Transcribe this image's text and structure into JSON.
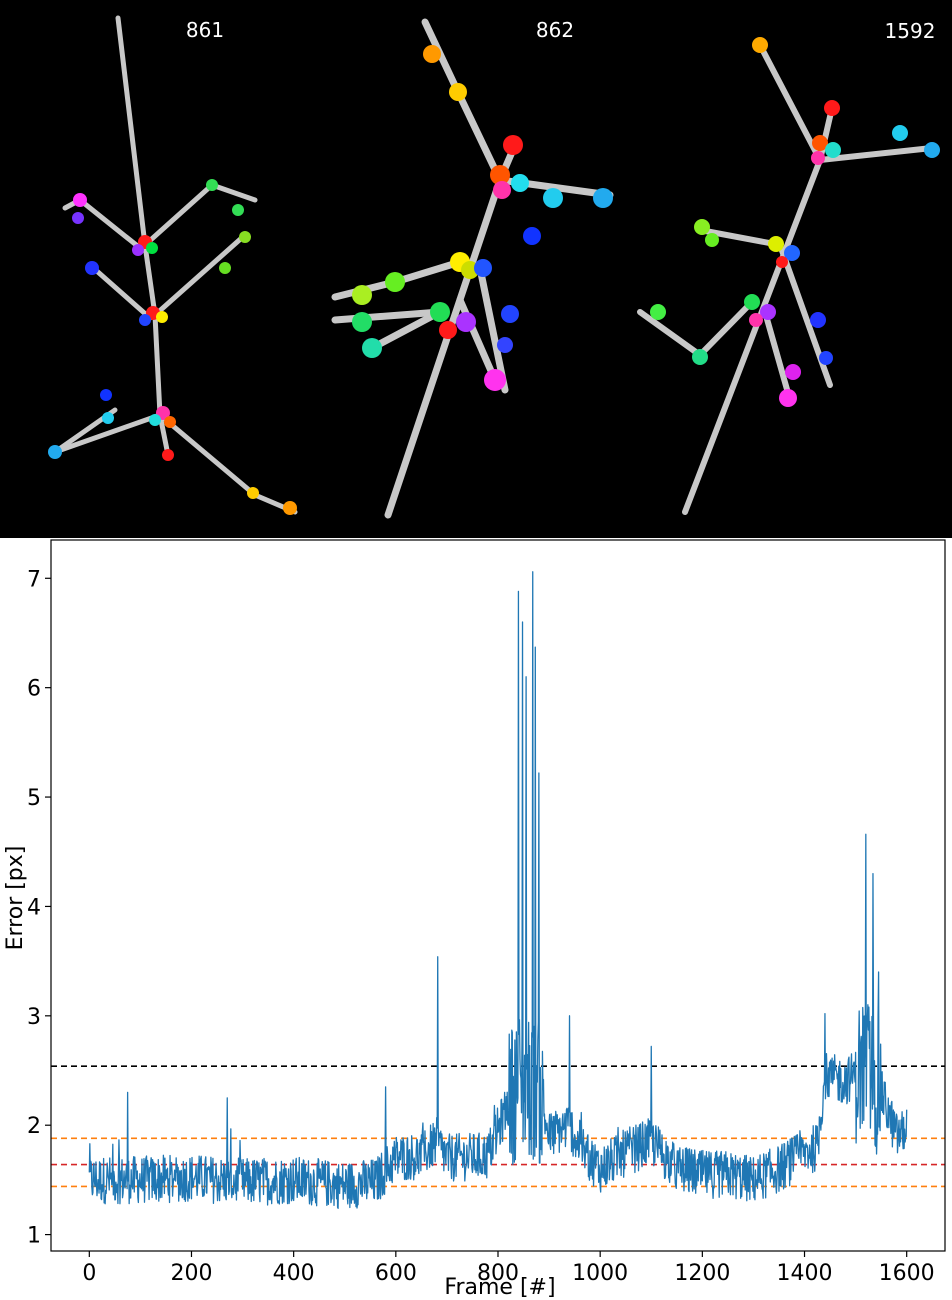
{
  "panels": [
    {
      "label": "861"
    },
    {
      "label": "862"
    },
    {
      "label": "1592"
    }
  ],
  "colors": {
    "background": "#000000",
    "bone": "#c8c8c8",
    "series": "#1f77b4",
    "line_black": "#000000",
    "line_red": "#d62728",
    "line_orange": "#ff7f0e"
  },
  "chart_data": {
    "type": "line",
    "title": "",
    "xlabel": "Frame [#]",
    "ylabel": "Error [px]",
    "xlim": [
      -75,
      1675
    ],
    "ylim": [
      0.85,
      7.35
    ],
    "xticks": [
      0,
      200,
      400,
      600,
      800,
      1000,
      1200,
      1400,
      1600
    ],
    "yticks": [
      1,
      2,
      3,
      4,
      5,
      6,
      7
    ],
    "grid": false,
    "series": [
      {
        "style": "solid",
        "color": "#1f77b4",
        "x_range": [
          0,
          1600
        ],
        "profile_points": [
          [
            0,
            1.5
          ],
          [
            100,
            1.5
          ],
          [
            200,
            1.52
          ],
          [
            300,
            1.48
          ],
          [
            400,
            1.5
          ],
          [
            500,
            1.45
          ],
          [
            560,
            1.48
          ],
          [
            600,
            1.7
          ],
          [
            650,
            1.72
          ],
          [
            680,
            1.85
          ],
          [
            700,
            1.7
          ],
          [
            780,
            1.72
          ],
          [
            800,
            1.95
          ],
          [
            820,
            2.2
          ],
          [
            840,
            2.4
          ],
          [
            880,
            2.3
          ],
          [
            900,
            1.9
          ],
          [
            940,
            2.0
          ],
          [
            960,
            1.8
          ],
          [
            1000,
            1.6
          ],
          [
            1050,
            1.75
          ],
          [
            1100,
            1.85
          ],
          [
            1150,
            1.6
          ],
          [
            1200,
            1.55
          ],
          [
            1250,
            1.55
          ],
          [
            1300,
            1.5
          ],
          [
            1350,
            1.6
          ],
          [
            1400,
            1.75
          ],
          [
            1425,
            1.8
          ],
          [
            1440,
            2.45
          ],
          [
            1480,
            2.4
          ],
          [
            1520,
            2.55
          ],
          [
            1550,
            2.3
          ],
          [
            1580,
            1.9
          ],
          [
            1600,
            1.95
          ]
        ],
        "peaks": [
          [
            75,
            2.3
          ],
          [
            270,
            2.25
          ],
          [
            580,
            2.35
          ],
          [
            682,
            3.54
          ],
          [
            828,
            2.85
          ],
          [
            840,
            6.88
          ],
          [
            848,
            6.6
          ],
          [
            855,
            6.1
          ],
          [
            868,
            7.06
          ],
          [
            873,
            6.37
          ],
          [
            880,
            5.22
          ],
          [
            940,
            3.0
          ],
          [
            1100,
            2.72
          ],
          [
            1440,
            3.02
          ],
          [
            1520,
            4.66
          ],
          [
            1534,
            4.3
          ],
          [
            1545,
            3.4
          ]
        ],
        "noise_amplitude": 0.22
      }
    ],
    "hlines": [
      {
        "y": 2.54,
        "color": "#000000",
        "style": "dashed"
      },
      {
        "y": 1.88,
        "color": "#ff7f0e",
        "style": "dashed"
      },
      {
        "y": 1.64,
        "color": "#d62728",
        "style": "dashed"
      },
      {
        "y": 1.44,
        "color": "#ff7f0e",
        "style": "dashed"
      }
    ]
  }
}
